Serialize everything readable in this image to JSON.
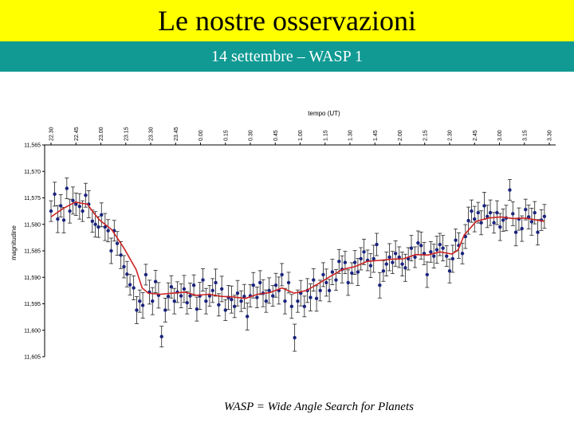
{
  "slide": {
    "title": "Le nostre osservazioni",
    "subtitle": "14 settembre – WASP 1",
    "caption": "WASP = Wide Angle Search for Planets",
    "title_bg": "#ffff00",
    "subtitle_bg": "#109a93"
  },
  "chart_data": {
    "type": "scatter",
    "xlabel": "tempo (UT)",
    "ylabel": "magnitudine",
    "x_ticks": [
      "22.30",
      "22.45",
      "23.00",
      "23.15",
      "23.30",
      "23.45",
      "0.00",
      "0.15",
      "0.30",
      "0.45",
      "1.00",
      "1.15",
      "1.30",
      "1.45",
      "2.00",
      "2.15",
      "2.30",
      "2.45",
      "3.00",
      "3.15",
      "3.30"
    ],
    "y_ticks": [
      "11,565",
      "11,570",
      "11,575",
      "11,580",
      "11,585",
      "11,590",
      "11,595",
      "11,600",
      "11,605"
    ],
    "ylim": [
      11.565,
      11.605
    ],
    "y_inverted": true,
    "x_axis_position": "top",
    "grid": false,
    "point_color": "#1a237e",
    "line_color": "#cc2222",
    "series": [
      {
        "type": "points_with_errorbars",
        "points": [
          {
            "x": 0.0,
            "y": 11.5775
          },
          {
            "x": 0.3,
            "y": 11.5743
          },
          {
            "x": 0.55,
            "y": 11.579
          },
          {
            "x": 0.8,
            "y": 11.5765
          },
          {
            "x": 1.05,
            "y": 11.5792
          },
          {
            "x": 1.3,
            "y": 11.5732
          },
          {
            "x": 1.55,
            "y": 11.5775
          },
          {
            "x": 1.8,
            "y": 11.5755
          },
          {
            "x": 2.05,
            "y": 11.5762
          },
          {
            "x": 2.35,
            "y": 11.5766
          },
          {
            "x": 2.6,
            "y": 11.5775
          },
          {
            "x": 2.85,
            "y": 11.5745
          },
          {
            "x": 3.1,
            "y": 11.5762
          },
          {
            "x": 3.4,
            "y": 11.5794
          },
          {
            "x": 3.65,
            "y": 11.58
          },
          {
            "x": 3.9,
            "y": 11.5805
          },
          {
            "x": 4.15,
            "y": 11.5782
          },
          {
            "x": 4.45,
            "y": 11.5805
          },
          {
            "x": 4.7,
            "y": 11.5812
          },
          {
            "x": 4.95,
            "y": 11.585
          },
          {
            "x": 5.2,
            "y": 11.5812
          },
          {
            "x": 5.45,
            "y": 11.5836
          },
          {
            "x": 5.75,
            "y": 11.5858
          },
          {
            "x": 6.0,
            "y": 11.588
          },
          {
            "x": 6.25,
            "y": 11.5894
          },
          {
            "x": 6.5,
            "y": 11.5914
          },
          {
            "x": 6.8,
            "y": 11.592
          },
          {
            "x": 7.05,
            "y": 11.5962
          },
          {
            "x": 7.3,
            "y": 11.5945
          },
          {
            "x": 7.55,
            "y": 11.5953
          },
          {
            "x": 7.8,
            "y": 11.5895
          },
          {
            "x": 8.1,
            "y": 11.5928
          },
          {
            "x": 8.35,
            "y": 11.5945
          },
          {
            "x": 8.6,
            "y": 11.5908
          },
          {
            "x": 8.85,
            "y": 11.5934
          },
          {
            "x": 9.1,
            "y": 11.6012
          },
          {
            "x": 9.4,
            "y": 11.5962
          },
          {
            "x": 9.65,
            "y": 11.5936
          },
          {
            "x": 9.9,
            "y": 11.5918
          },
          {
            "x": 10.15,
            "y": 11.5945
          },
          {
            "x": 10.4,
            "y": 11.5928
          },
          {
            "x": 10.7,
            "y": 11.5935
          },
          {
            "x": 10.95,
            "y": 11.5922
          },
          {
            "x": 11.2,
            "y": 11.5948
          },
          {
            "x": 11.45,
            "y": 11.5935
          },
          {
            "x": 11.75,
            "y": 11.5915
          },
          {
            "x": 12.0,
            "y": 11.596
          },
          {
            "x": 12.25,
            "y": 11.5935
          },
          {
            "x": 12.5,
            "y": 11.5905
          },
          {
            "x": 12.75,
            "y": 11.5945
          },
          {
            "x": 13.05,
            "y": 11.5935
          },
          {
            "x": 13.3,
            "y": 11.5925
          },
          {
            "x": 13.55,
            "y": 11.591
          },
          {
            "x": 13.8,
            "y": 11.5952
          },
          {
            "x": 14.05,
            "y": 11.5922
          },
          {
            "x": 14.35,
            "y": 11.5962
          },
          {
            "x": 14.6,
            "y": 11.5938
          },
          {
            "x": 14.85,
            "y": 11.5942
          },
          {
            "x": 15.1,
            "y": 11.5955
          },
          {
            "x": 15.35,
            "y": 11.593
          },
          {
            "x": 15.65,
            "y": 11.5945
          },
          {
            "x": 15.9,
            "y": 11.5936
          },
          {
            "x": 16.15,
            "y": 11.5974
          },
          {
            "x": 16.4,
            "y": 11.5935
          },
          {
            "x": 16.65,
            "y": 11.5915
          },
          {
            "x": 16.95,
            "y": 11.5938
          },
          {
            "x": 17.2,
            "y": 11.591
          },
          {
            "x": 17.45,
            "y": 11.593
          },
          {
            "x": 17.7,
            "y": 11.5945
          },
          {
            "x": 17.95,
            "y": 11.5925
          },
          {
            "x": 18.25,
            "y": 11.5935
          },
          {
            "x": 18.5,
            "y": 11.5915
          },
          {
            "x": 18.75,
            "y": 11.5925
          },
          {
            "x": 19.0,
            "y": 11.5895
          },
          {
            "x": 19.25,
            "y": 11.5945
          },
          {
            "x": 19.55,
            "y": 11.591
          },
          {
            "x": 19.8,
            "y": 11.5955
          },
          {
            "x": 20.05,
            "y": 11.6014
          },
          {
            "x": 20.3,
            "y": 11.5945
          },
          {
            "x": 20.55,
            "y": 11.593
          },
          {
            "x": 20.85,
            "y": 11.5955
          },
          {
            "x": 21.1,
            "y": 11.5925
          },
          {
            "x": 21.35,
            "y": 11.5938
          },
          {
            "x": 21.6,
            "y": 11.5905
          },
          {
            "x": 21.85,
            "y": 11.594
          },
          {
            "x": 22.15,
            "y": 11.5925
          },
          {
            "x": 22.4,
            "y": 11.5895
          },
          {
            "x": 22.65,
            "y": 11.591
          },
          {
            "x": 22.9,
            "y": 11.5925
          },
          {
            "x": 23.15,
            "y": 11.589
          },
          {
            "x": 23.45,
            "y": 11.5905
          },
          {
            "x": 23.7,
            "y": 11.587
          },
          {
            "x": 23.95,
            "y": 11.5885
          },
          {
            "x": 24.2,
            "y": 11.5872
          },
          {
            "x": 24.45,
            "y": 11.591
          },
          {
            "x": 24.75,
            "y": 11.5892
          },
          {
            "x": 25.0,
            "y": 11.5872
          },
          {
            "x": 25.25,
            "y": 11.589
          },
          {
            "x": 25.5,
            "y": 11.5865
          },
          {
            "x": 25.75,
            "y": 11.5852
          },
          {
            "x": 26.05,
            "y": 11.5868
          },
          {
            "x": 26.3,
            "y": 11.5878
          },
          {
            "x": 26.55,
            "y": 11.5865
          },
          {
            "x": 26.8,
            "y": 11.5838
          },
          {
            "x": 27.05,
            "y": 11.5915
          },
          {
            "x": 27.35,
            "y": 11.5888
          },
          {
            "x": 27.6,
            "y": 11.5875
          },
          {
            "x": 27.85,
            "y": 11.5862
          },
          {
            "x": 28.1,
            "y": 11.5872
          },
          {
            "x": 28.35,
            "y": 11.5855
          },
          {
            "x": 28.65,
            "y": 11.5862
          },
          {
            "x": 28.9,
            "y": 11.5875
          },
          {
            "x": 29.15,
            "y": 11.5882
          },
          {
            "x": 29.4,
            "y": 11.5865
          },
          {
            "x": 29.65,
            "y": 11.5845
          },
          {
            "x": 29.95,
            "y": 11.5862
          },
          {
            "x": 30.2,
            "y": 11.5835
          },
          {
            "x": 30.45,
            "y": 11.584
          },
          {
            "x": 30.7,
            "y": 11.5855
          },
          {
            "x": 30.95,
            "y": 11.5895
          },
          {
            "x": 31.25,
            "y": 11.5852
          },
          {
            "x": 31.5,
            "y": 11.586
          },
          {
            "x": 31.75,
            "y": 11.5848
          },
          {
            "x": 32.0,
            "y": 11.5838
          },
          {
            "x": 32.25,
            "y": 11.5845
          },
          {
            "x": 32.55,
            "y": 11.586
          },
          {
            "x": 32.8,
            "y": 11.5888
          },
          {
            "x": 33.05,
            "y": 11.5865
          },
          {
            "x": 33.3,
            "y": 11.583
          },
          {
            "x": 33.55,
            "y": 11.584
          },
          {
            "x": 33.85,
            "y": 11.5855
          },
          {
            "x": 34.1,
            "y": 11.5823
          },
          {
            "x": 34.35,
            "y": 11.5793
          },
          {
            "x": 34.6,
            "y": 11.5775
          },
          {
            "x": 34.85,
            "y": 11.579
          },
          {
            "x": 35.15,
            "y": 11.5778
          },
          {
            "x": 35.4,
            "y": 11.5797
          },
          {
            "x": 35.65,
            "y": 11.5765
          },
          {
            "x": 35.9,
            "y": 11.5785
          },
          {
            "x": 36.15,
            "y": 11.5778
          },
          {
            "x": 36.45,
            "y": 11.5797
          },
          {
            "x": 36.7,
            "y": 11.5778
          },
          {
            "x": 36.95,
            "y": 11.5805
          },
          {
            "x": 37.2,
            "y": 11.5792
          },
          {
            "x": 37.45,
            "y": 11.5788
          },
          {
            "x": 37.75,
            "y": 11.5735
          },
          {
            "x": 38.0,
            "y": 11.578
          },
          {
            "x": 38.25,
            "y": 11.5815
          },
          {
            "x": 38.5,
            "y": 11.579
          },
          {
            "x": 38.75,
            "y": 11.5808
          },
          {
            "x": 39.05,
            "y": 11.5772
          },
          {
            "x": 39.3,
            "y": 11.5786
          },
          {
            "x": 39.55,
            "y": 11.5795
          },
          {
            "x": 39.8,
            "y": 11.5778
          },
          {
            "x": 40.05,
            "y": 11.5815
          },
          {
            "x": 40.35,
            "y": 11.5792
          },
          {
            "x": 40.6,
            "y": 11.5785
          }
        ]
      },
      {
        "type": "moving_average_line",
        "points": [
          {
            "x": 0,
            "y": 11.5786
          },
          {
            "x": 1,
            "y": 11.577
          },
          {
            "x": 2,
            "y": 11.5758
          },
          {
            "x": 3,
            "y": 11.5762
          },
          {
            "x": 3.5,
            "y": 11.5778
          },
          {
            "x": 4,
            "y": 11.5792
          },
          {
            "x": 5,
            "y": 11.581
          },
          {
            "x": 6,
            "y": 11.5845
          },
          {
            "x": 7,
            "y": 11.5885
          },
          {
            "x": 7.5,
            "y": 11.592
          },
          {
            "x": 8,
            "y": 11.593
          },
          {
            "x": 9,
            "y": 11.5932
          },
          {
            "x": 10,
            "y": 11.593
          },
          {
            "x": 11,
            "y": 11.5928
          },
          {
            "x": 12,
            "y": 11.5934
          },
          {
            "x": 13,
            "y": 11.5932
          },
          {
            "x": 14,
            "y": 11.5936
          },
          {
            "x": 15,
            "y": 11.5937
          },
          {
            "x": 16,
            "y": 11.594
          },
          {
            "x": 17,
            "y": 11.5932
          },
          {
            "x": 18,
            "y": 11.5929
          },
          {
            "x": 19,
            "y": 11.592
          },
          {
            "x": 20,
            "y": 11.593
          },
          {
            "x": 21,
            "y": 11.5925
          },
          {
            "x": 22,
            "y": 11.5912
          },
          {
            "x": 23,
            "y": 11.5898
          },
          {
            "x": 24,
            "y": 11.5885
          },
          {
            "x": 25,
            "y": 11.588
          },
          {
            "x": 26,
            "y": 11.587
          },
          {
            "x": 27,
            "y": 11.5868
          },
          {
            "x": 28,
            "y": 11.5866
          },
          {
            "x": 29,
            "y": 11.5865
          },
          {
            "x": 30,
            "y": 11.5857
          },
          {
            "x": 31,
            "y": 11.5858
          },
          {
            "x": 32,
            "y": 11.5852
          },
          {
            "x": 33,
            "y": 11.5856
          },
          {
            "x": 33.5,
            "y": 11.5848
          },
          {
            "x": 34,
            "y": 11.582
          },
          {
            "x": 35,
            "y": 11.5794
          },
          {
            "x": 36,
            "y": 11.5788
          },
          {
            "x": 37,
            "y": 11.5786
          },
          {
            "x": 38,
            "y": 11.5789
          },
          {
            "x": 39,
            "y": 11.5788
          },
          {
            "x": 40,
            "y": 11.5792
          },
          {
            "x": 40.6,
            "y": 11.5794
          }
        ]
      }
    ]
  }
}
